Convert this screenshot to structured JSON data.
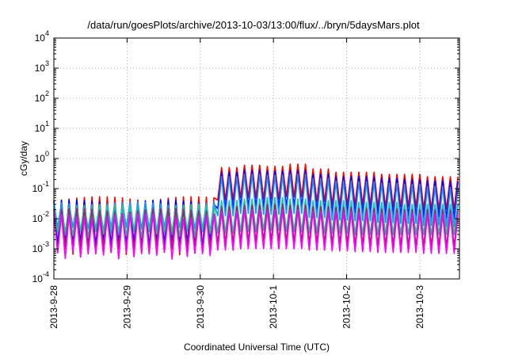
{
  "chart_data": {
    "type": "line",
    "title": "/data/run/goesPlots/archive/2013-10-03/13:00/flux/../bryn/5daysMars.plot",
    "xlabel": "Coordinated Universal Time (UTC)",
    "ylabel": "cGy/day",
    "yscale": "log",
    "ylim": [
      0.0001,
      10000
    ],
    "xlim": [
      "2013-09-28 00:00",
      "2013-10-03 13:00"
    ],
    "grid": true,
    "legend": "none",
    "y_ticks": [
      {
        "base": "10",
        "exp": "4"
      },
      {
        "base": "10",
        "exp": "3"
      },
      {
        "base": "10",
        "exp": "2"
      },
      {
        "base": "10",
        "exp": "1"
      },
      {
        "base": "10",
        "exp": "0"
      },
      {
        "base": "10",
        "exp": "-1"
      },
      {
        "base": "10",
        "exp": "-2"
      },
      {
        "base": "10",
        "exp": "-3"
      },
      {
        "base": "10",
        "exp": "-4"
      }
    ],
    "x_ticks": [
      "2013-9-28",
      "2013-9-29",
      "2013-9-30",
      "2013-10-1",
      "2013-10-2",
      "2013-10-3"
    ],
    "series_colors": [
      "#ff0000",
      "#0000ff",
      "#1e90ff",
      "#20c0a0",
      "#a0206a",
      "#ff00ff"
    ],
    "series_note": "six sawtooth flux series sampled every ~2.5 hours; values are peak (high) and trough (low) per cycle",
    "series": [
      {
        "color": "#ff0000",
        "low": 0.0008,
        "peaks_pre": 0.045,
        "peaks_event": [
          0.5,
          0.6,
          0.55,
          0.65,
          0.45,
          0.35,
          0.35,
          0.3,
          0.3,
          0.25,
          0.25,
          0.22,
          0.2,
          0.18,
          0.17,
          0.15,
          0.14,
          0.12,
          0.12,
          0.1,
          0.1,
          0.09,
          0.09,
          0.08,
          0.08,
          0.07,
          0.07,
          0.07,
          0.06,
          0.06
        ]
      },
      {
        "color": "#0000ff",
        "low": 0.0015,
        "peaks_pre": 0.035,
        "peaks_event": [
          0.35,
          0.4,
          0.38,
          0.4,
          0.3,
          0.25,
          0.25,
          0.22,
          0.2,
          0.18,
          0.17,
          0.15,
          0.14,
          0.13,
          0.12,
          0.11,
          0.1,
          0.09,
          0.09,
          0.08,
          0.07,
          0.07,
          0.06,
          0.06,
          0.055,
          0.05,
          0.05,
          0.045,
          0.045,
          0.04
        ]
      },
      {
        "color": "#1e90ff",
        "low": 0.004,
        "peaks_pre": 0.03,
        "peaks_event": [
          0.25,
          0.3,
          0.28,
          0.3,
          0.22,
          0.18,
          0.17,
          0.15,
          0.14,
          0.12,
          0.11,
          0.1,
          0.09,
          0.085,
          0.08,
          0.07,
          0.065,
          0.06,
          0.055,
          0.05,
          0.05,
          0.045,
          0.04,
          0.04,
          0.035,
          0.035,
          0.03,
          0.03,
          0.03,
          0.028
        ]
      },
      {
        "color": "#20c0a0",
        "low": 0.003,
        "peaks_pre": 0.025,
        "peaks_event": [
          0.04,
          0.045,
          0.05,
          0.045,
          0.04,
          0.04,
          0.035,
          0.035,
          0.03,
          0.03,
          0.03,
          0.028,
          0.027,
          0.026,
          0.025,
          0.025,
          0.024,
          0.023,
          0.022,
          0.022,
          0.021,
          0.02,
          0.02,
          0.02,
          0.019,
          0.019,
          0.018,
          0.018,
          0.018,
          0.017
        ]
      },
      {
        "color": "#a0206a",
        "low": 0.0009,
        "peaks_pre": 0.018,
        "peaks_event": [
          0.025,
          0.028,
          0.03,
          0.028,
          0.025,
          0.024,
          0.022,
          0.021,
          0.02,
          0.02,
          0.019,
          0.018,
          0.018,
          0.017,
          0.017,
          0.016,
          0.016,
          0.015,
          0.015,
          0.015,
          0.014,
          0.014,
          0.014,
          0.013,
          0.013,
          0.013,
          0.013,
          0.012,
          0.012,
          0.012
        ]
      },
      {
        "color": "#ff00ff",
        "low": 0.0006,
        "peaks_pre": 0.012,
        "peaks_event": [
          0.018,
          0.02,
          0.02,
          0.02,
          0.018,
          0.017,
          0.016,
          0.015,
          0.015,
          0.014,
          0.014,
          0.013,
          0.013,
          0.013,
          0.012,
          0.012,
          0.012,
          0.011,
          0.011,
          0.011,
          0.011,
          0.01,
          0.01,
          0.01,
          0.01,
          0.01,
          0.01,
          0.01,
          0.01,
          0.01
        ]
      }
    ]
  }
}
